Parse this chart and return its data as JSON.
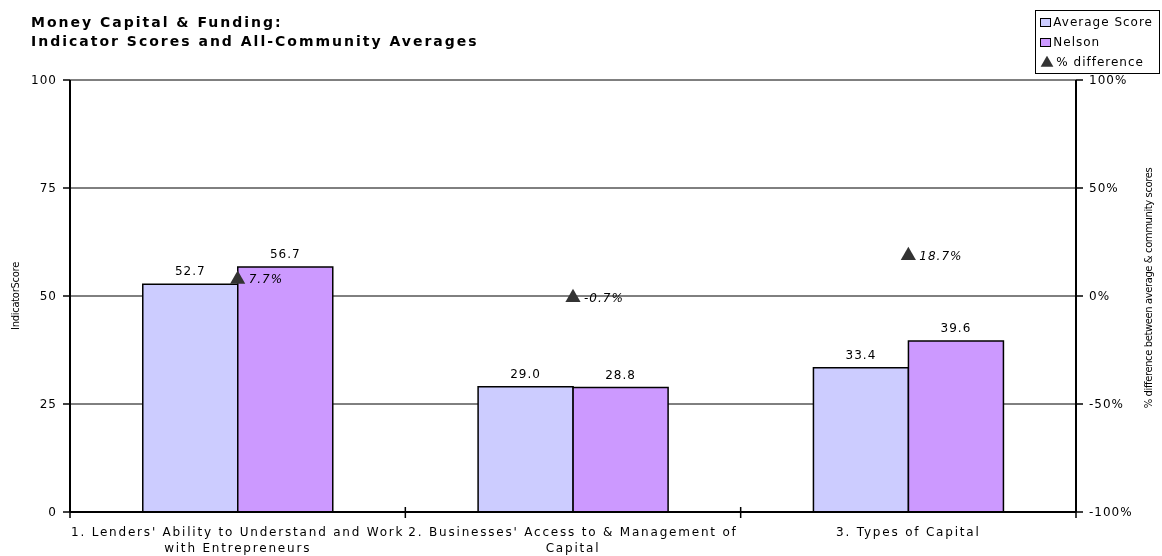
{
  "chart_data": {
    "type": "bar",
    "title": "Money Capital & Funding:",
    "subtitle": "Indicator Scores and All-Community Averages",
    "ylabel": "IndicatorScore",
    "y2label": "% difference between average & community scores",
    "categories": [
      "1. Lenders' Ability to Understand and Work with Entrepreneurs",
      "2. Businesses' Access to & Management of Capital",
      "3. Types of Capital"
    ],
    "series": [
      {
        "name": "Average Score",
        "color": "#ccccff",
        "values": [
          52.7,
          29.0,
          33.4
        ],
        "value_labels": [
          "52.7",
          "29.0",
          "33.4"
        ]
      },
      {
        "name": "Nelson",
        "color": "#cc99ff",
        "values": [
          56.7,
          28.8,
          39.6
        ],
        "value_labels": [
          "56.7",
          "28.8",
          "39.6"
        ]
      },
      {
        "name": "% difference",
        "type": "scatter",
        "axis": "y2",
        "marker": "triangle",
        "color": "#333333",
        "values": [
          7.7,
          -0.7,
          18.7
        ],
        "value_labels": [
          "7.7%",
          "-0.7%",
          "18.7%"
        ]
      }
    ],
    "ylim": [
      0,
      100
    ],
    "yticks": [
      0,
      25,
      50,
      75,
      100
    ],
    "y2lim": [
      -100,
      100
    ],
    "y2ticks": [
      {
        "value": -100,
        "label": "-100%"
      },
      {
        "value": -50,
        "label": "-50%"
      },
      {
        "value": 0,
        "label": "0%"
      },
      {
        "value": 50,
        "label": "50%"
      },
      {
        "value": 100,
        "label": "100%"
      }
    ],
    "grid": "y",
    "legend": "top right"
  }
}
